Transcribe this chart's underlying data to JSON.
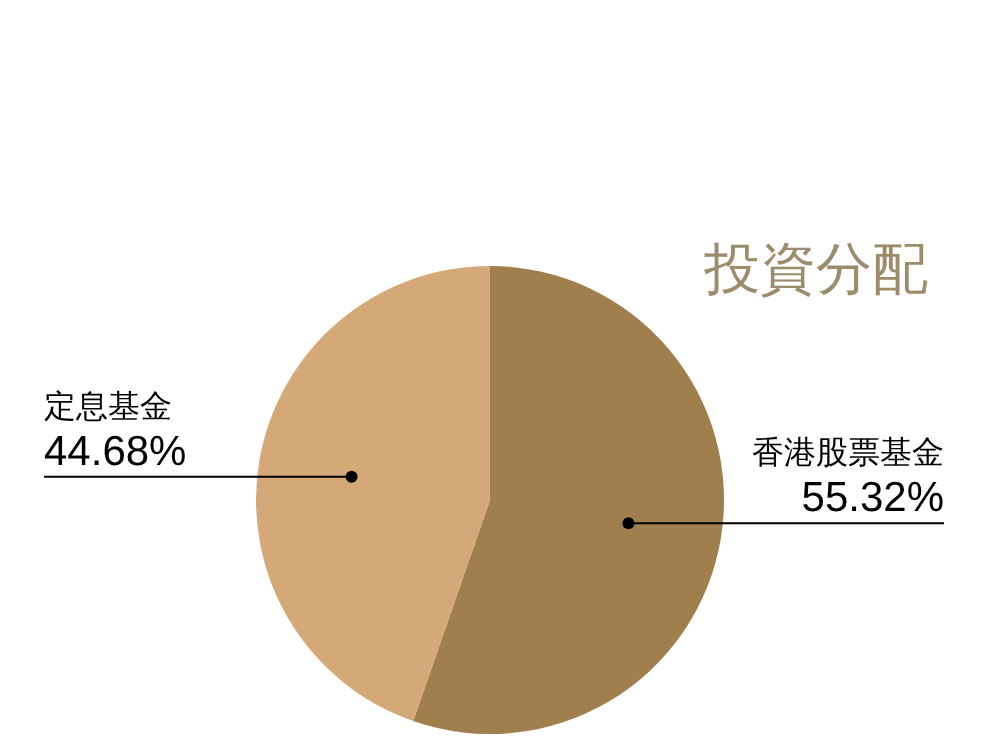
{
  "chart_data": {
    "type": "pie",
    "title": "投資分配",
    "categories": [
      "香港股票基金",
      "定息基金"
    ],
    "values": [
      55.32,
      44.68
    ],
    "colors": [
      "#a07f4c",
      "#d5a877"
    ],
    "value_labels": [
      "55.32%",
      "44.68%"
    ]
  }
}
